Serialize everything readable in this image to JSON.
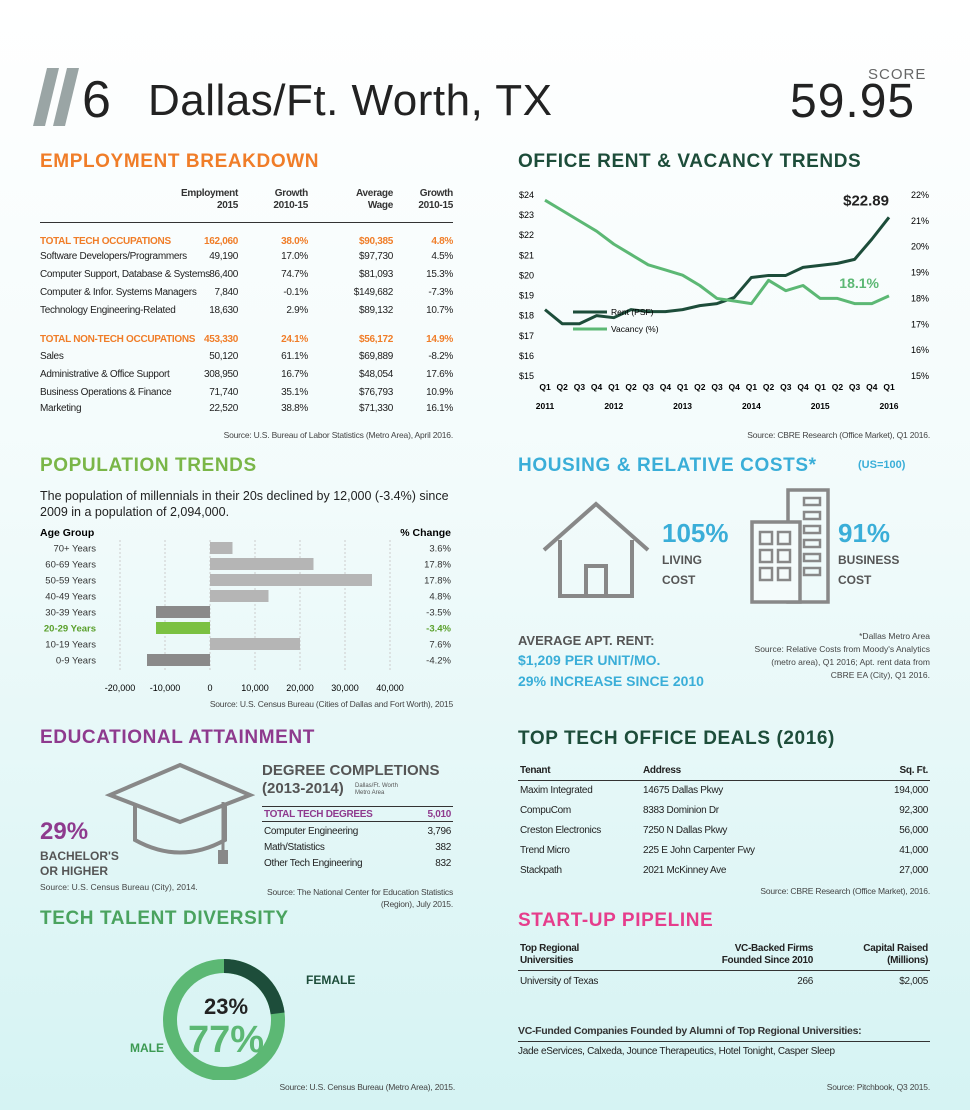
{
  "header": {
    "rank": "6",
    "city": "Dallas/Ft. Worth, TX",
    "score_label": "SCORE",
    "score": "59.95"
  },
  "employment": {
    "title": "EMPLOYMENT BREAKDOWN",
    "headers": [
      "Employment 2015",
      "Growth 2010-15",
      "Average Wage",
      "Growth 2010-15"
    ],
    "header_lines": [
      [
        "Employment",
        "2015"
      ],
      [
        "Growth",
        "2010-15"
      ],
      [
        "Average",
        "Wage"
      ],
      [
        "Growth",
        "2010-15"
      ]
    ],
    "rows": [
      {
        "label": "TOTAL TECH OCCUPATIONS",
        "emp": "162,060",
        "growth": "38.0%",
        "wage": "$90,385",
        "wage_growth": "4.8%",
        "total": true
      },
      {
        "label": "Software Developers/Programmers",
        "emp": "49,190",
        "growth": "17.0%",
        "wage": "$97,730",
        "wage_growth": "4.5%"
      },
      {
        "label": "Computer Support, Database & Systems",
        "emp": "86,400",
        "growth": "74.7%",
        "wage": "$81,093",
        "wage_growth": "15.3%"
      },
      {
        "label": "Computer & Infor. Systems Managers",
        "emp": "7,840",
        "growth": "-0.1%",
        "wage": "$149,682",
        "wage_growth": "-7.3%"
      },
      {
        "label": "Technology Engineering-Related",
        "emp": "18,630",
        "growth": "2.9%",
        "wage": "$89,132",
        "wage_growth": "10.7%"
      },
      {
        "label": "TOTAL NON-TECH OCCUPATIONS",
        "emp": "453,330",
        "growth": "24.1%",
        "wage": "$56,172",
        "wage_growth": "14.9%",
        "total": true
      },
      {
        "label": "Sales",
        "emp": "50,120",
        "growth": "61.1%",
        "wage": "$69,889",
        "wage_growth": "-8.2%"
      },
      {
        "label": "Administrative & Office Support",
        "emp": "308,950",
        "growth": "16.7%",
        "wage": "$48,054",
        "wage_growth": "17.6%"
      },
      {
        "label": "Business Operations & Finance",
        "emp": "71,740",
        "growth": "35.1%",
        "wage": "$76,793",
        "wage_growth": "10.9%"
      },
      {
        "label": "Marketing",
        "emp": "22,520",
        "growth": "38.8%",
        "wage": "$71,330",
        "wage_growth": "16.1%"
      }
    ],
    "source": "Source: U.S. Bureau of Labor Statistics (Metro Area), April 2016."
  },
  "population": {
    "title": "POPULATION TRENDS",
    "description": "The population of millennials in their 20s declined by 12,000 (-3.4%) since 2009 in a population of 2,094,000.",
    "source": "Source: U.S. Census Bureau (Cities of Dallas and Fort Worth), 2015"
  },
  "education": {
    "title": "EDUCATIONAL ATTAINMENT",
    "pct": "29%",
    "pct_label": "BACHELOR'S OR HIGHER",
    "pct_source": "Source: U.S. Census Bureau (City), 2014.",
    "degree_title_1": "DEGREE COMPLETIONS",
    "degree_title_2": "(2013-2014)",
    "degree_subtitle": "Dallas/Ft. Worth Metro Area",
    "degrees": [
      {
        "label": "TOTAL TECH DEGREES",
        "value": "5,010",
        "total": true
      },
      {
        "label": "Computer Engineering",
        "value": "3,796"
      },
      {
        "label": "Math/Statistics",
        "value": "382"
      },
      {
        "label": "Other Tech Engineering",
        "value": "832"
      }
    ],
    "degree_source": "Source: The National Center for Education Statistics (Region), July 2015."
  },
  "diversity": {
    "title": "TECH TALENT DIVERSITY",
    "female_pct": "23%",
    "female_label": "FEMALE",
    "male_pct": "77%",
    "male_label": "MALE",
    "source": "Source: U.S. Census Bureau (Metro Area), 2015.",
    "colors": {
      "female": "#1d4d3a",
      "male": "#5cb874"
    }
  },
  "office": {
    "title": "OFFICE RENT & VACANCY TRENDS",
    "source": "Source: CBRE Research (Office Market), Q1 2016."
  },
  "housing": {
    "title": "HOUSING & RELATIVE COSTS*",
    "unit": "(US=100)",
    "living_pct": "105%",
    "living_label_1": "LIVING",
    "living_label_2": "COST",
    "business_pct": "91%",
    "business_label_1": "BUSINESS",
    "business_label_2": "COST",
    "apt_label": "AVERAGE APT. RENT:",
    "apt_line1": "$1,209 PER UNIT/MO.",
    "apt_line2": "29% INCREASE SINCE 2010",
    "note": "*Dallas Metro Area Source: Relative Costs from Moody's Analytics (metro area), Q1 2016; Apt. rent data from CBRE EA (City), Q1 2016.",
    "note_lines": [
      "*Dallas Metro Area",
      "Source: Relative Costs from Moody's Analytics",
      "(metro area), Q1 2016; Apt. rent data from",
      "CBRE EA (City), Q1 2016."
    ]
  },
  "deals": {
    "title": "TOP TECH OFFICE DEALS (2016)",
    "headers": [
      "Tenant",
      "Address",
      "Sq. Ft."
    ],
    "rows": [
      [
        "Maxim Integrated",
        "14675 Dallas Pkwy",
        "194,000"
      ],
      [
        "CompuCom",
        "8383 Dominion Dr",
        "92,300"
      ],
      [
        "Creston Electronics",
        "7250 N Dallas Pkwy",
        "56,000"
      ],
      [
        "Trend Micro",
        "225 E John Carpenter Fwy",
        "41,000"
      ],
      [
        "Stackpath",
        "2021 McKinney Ave",
        "27,000"
      ]
    ],
    "source": "Source: CBRE Research (Office Market), 2016."
  },
  "startup": {
    "title": "START-UP PIPELINE",
    "headers": [
      "Top Regional Universities",
      "VC-Backed Firms Founded Since 2010",
      "Capital Raised (Millions)"
    ],
    "header_lines": [
      [
        "Top Regional",
        "Universities"
      ],
      [
        "VC-Backed Firms",
        "Founded Since 2010"
      ],
      [
        "Capital Raised",
        "(Millions)"
      ]
    ],
    "rows": [
      [
        "University of Texas",
        "266",
        "$2,005"
      ]
    ],
    "vc_label": "VC-Funded Companies Founded by Alumni of Top Regional Universities:",
    "vc_list": "Jade eServices, Calxeda, Jounce Therapeutics, Hotel Tonight, Casper Sleep",
    "source": "Source: Pitchbook, Q3 2015."
  },
  "chart_data": [
    {
      "type": "bar",
      "orientation": "horizontal",
      "title": "",
      "category_header": "Age Group",
      "value_header": "% Change",
      "categories": [
        "70+ Years",
        "60-69 Years",
        "50-59 Years",
        "40-49 Years",
        "30-39 Years",
        "20-29 Years",
        "10-19 Years",
        "0-9 Years"
      ],
      "values": [
        5000,
        23000,
        36000,
        13000,
        -12000,
        -12000,
        20000,
        -14000
      ],
      "pct_change": [
        "3.6%",
        "17.8%",
        "17.8%",
        "4.8%",
        "-3.5%",
        "-3.4%",
        "7.6%",
        "-4.2%"
      ],
      "highlight": "20-29 Years",
      "xlim": [
        -20000,
        40000
      ],
      "xticks": [
        "-20,000",
        "-10,000",
        "0",
        "10,000",
        "20,000",
        "30,000",
        "40,000"
      ],
      "grid": false,
      "colors": {
        "positive": "#b5b5b5",
        "negative": "#8a8a8a",
        "highlight": "#7bc142"
      }
    },
    {
      "type": "line",
      "title": "",
      "x": [
        "Q1 2011",
        "Q2",
        "Q3",
        "Q4",
        "Q1 2012",
        "Q2",
        "Q3",
        "Q4",
        "Q1 2013",
        "Q2",
        "Q3",
        "Q4",
        "Q1 2014",
        "Q2",
        "Q3",
        "Q4",
        "Q1 2015",
        "Q2",
        "Q3",
        "Q4",
        "Q1 2016"
      ],
      "x_quarter_labels": [
        "Q1",
        "Q2",
        "Q3",
        "Q4",
        "Q1",
        "Q2",
        "Q3",
        "Q4",
        "Q1",
        "Q2",
        "Q3",
        "Q4",
        "Q1",
        "Q2",
        "Q3",
        "Q4",
        "Q1",
        "Q2",
        "Q3",
        "Q4",
        "Q1"
      ],
      "x_year_labels": [
        "2011",
        "2012",
        "2013",
        "2014",
        "2015",
        "2016"
      ],
      "series": [
        {
          "name": "Rent (PSF)",
          "axis": "left",
          "color": "#1d4d3a",
          "end_label": "$22.89",
          "values": [
            18.3,
            17.6,
            17.6,
            18.0,
            17.9,
            18.3,
            18.2,
            18.2,
            18.3,
            18.5,
            18.6,
            18.9,
            19.9,
            20.0,
            20.0,
            20.4,
            20.5,
            20.6,
            20.8,
            21.8,
            22.89
          ]
        },
        {
          "name": "Vacancy (%)",
          "axis": "right",
          "color": "#5cb874",
          "end_label": "18.1%",
          "values": [
            21.8,
            21.4,
            21.0,
            20.6,
            20.1,
            19.7,
            19.3,
            19.1,
            18.9,
            18.5,
            18.0,
            17.9,
            17.8,
            18.7,
            18.3,
            18.5,
            18.0,
            18.0,
            17.8,
            17.8,
            18.1
          ]
        }
      ],
      "ylim_left": [
        15,
        24
      ],
      "yticks_left": [
        "$15",
        "$16",
        "$17",
        "$18",
        "$19",
        "$20",
        "$21",
        "$22",
        "$23",
        "$24"
      ],
      "ylim_right": [
        15,
        22
      ],
      "yticks_right": [
        "15%",
        "16%",
        "17%",
        "18%",
        "19%",
        "20%",
        "21%",
        "22%"
      ],
      "legend": "lower-left",
      "grid": false
    },
    {
      "type": "pie",
      "title": "",
      "categories": [
        "FEMALE",
        "MALE"
      ],
      "values": [
        23,
        77
      ]
    }
  ]
}
